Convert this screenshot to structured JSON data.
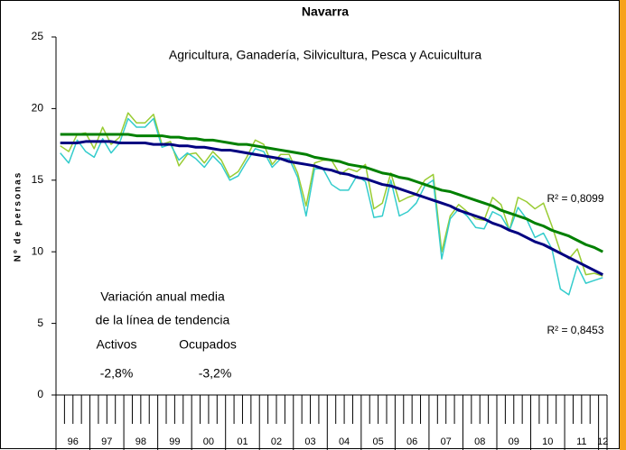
{
  "chart_data": {
    "type": "line",
    "title": "Navarra",
    "subtitle": "Agricultura, Ganadería, Silvicultura, Pesca y Acuicultura",
    "y_label": "Nº de personas",
    "categories": [
      "96",
      null,
      null,
      null,
      "97",
      null,
      null,
      null,
      "98",
      null,
      null,
      null,
      "99",
      null,
      null,
      null,
      "00",
      null,
      null,
      null,
      "01",
      null,
      null,
      null,
      "02",
      null,
      null,
      null,
      "03",
      null,
      null,
      null,
      "04",
      null,
      null,
      null,
      "05",
      null,
      null,
      null,
      "06",
      null,
      null,
      null,
      "07",
      null,
      null,
      null,
      "08",
      null,
      null,
      null,
      "09",
      null,
      null,
      null,
      "10",
      null,
      null,
      null,
      "11",
      null,
      null,
      null,
      "12"
    ],
    "series": [
      {
        "color": "#99cc33",
        "values": [
          17.4,
          17.0,
          18.2,
          18.3,
          17.2,
          18.7,
          17.5,
          18.0,
          19.7,
          19.0,
          19.0,
          19.6,
          17.5,
          17.7,
          16.0,
          16.8,
          16.9,
          16.2,
          17.0,
          16.4,
          15.2,
          15.6,
          16.6,
          17.8,
          17.5,
          16.1,
          16.8,
          16.8,
          15.5,
          13.2,
          16.2,
          16.4,
          16.4,
          15.4,
          15.8,
          15.6,
          16.1,
          13.0,
          13.4,
          15.5,
          13.5,
          13.8,
          14.0,
          15.0,
          15.4,
          10.0,
          12.5,
          13.3,
          12.8,
          12.3,
          12.2,
          13.8,
          13.3,
          11.5,
          13.8,
          13.5,
          13.0,
          13.4,
          11.8,
          10.0,
          9.5,
          10.2,
          8.4,
          8.5,
          8.3
        ]
      },
      {
        "color": "#33cccc",
        "values": [
          16.9,
          16.2,
          17.8,
          17.0,
          16.6,
          17.9,
          16.9,
          17.6,
          19.3,
          18.7,
          18.7,
          19.3,
          17.3,
          17.5,
          16.4,
          16.9,
          16.5,
          15.9,
          16.7,
          16.1,
          15.0,
          15.3,
          16.3,
          17.2,
          17.0,
          15.9,
          16.5,
          16.5,
          15.2,
          12.5,
          15.8,
          15.8,
          14.7,
          14.3,
          14.3,
          15.3,
          14.9,
          12.4,
          12.5,
          15.0,
          12.5,
          12.8,
          13.4,
          14.6,
          15.0,
          9.5,
          12.3,
          13.0,
          12.5,
          11.7,
          11.6,
          12.8,
          12.5,
          11.5,
          13.1,
          12.3,
          11.0,
          11.3,
          10.2,
          7.4,
          7.0,
          9.0,
          7.8,
          8.0,
          8.2
        ]
      },
      {
        "color": "#008000",
        "values": [
          18.2,
          18.2,
          18.2,
          18.2,
          18.2,
          18.2,
          18.2,
          18.2,
          18.2,
          18.1,
          18.1,
          18.1,
          18.1,
          18.0,
          18.0,
          17.9,
          17.9,
          17.8,
          17.8,
          17.7,
          17.6,
          17.5,
          17.5,
          17.4,
          17.3,
          17.2,
          17.1,
          17.0,
          16.9,
          16.8,
          16.6,
          16.5,
          16.4,
          16.3,
          16.1,
          16.0,
          15.9,
          15.7,
          15.5,
          15.4,
          15.2,
          15.1,
          14.9,
          14.7,
          14.5,
          14.3,
          14.2,
          14.0,
          13.8,
          13.6,
          13.4,
          13.2,
          12.9,
          12.7,
          12.5,
          12.3,
          12.0,
          11.8,
          11.5,
          11.3,
          11.1,
          10.8,
          10.5,
          10.3,
          10.0
        ]
      },
      {
        "color": "#000080",
        "values": [
          17.6,
          17.6,
          17.6,
          17.7,
          17.7,
          17.7,
          17.7,
          17.6,
          17.6,
          17.6,
          17.6,
          17.5,
          17.5,
          17.5,
          17.4,
          17.4,
          17.3,
          17.3,
          17.2,
          17.1,
          17.1,
          17.0,
          16.9,
          16.8,
          16.7,
          16.6,
          16.5,
          16.3,
          16.2,
          16.1,
          16.0,
          15.8,
          15.7,
          15.5,
          15.4,
          15.2,
          15.1,
          14.9,
          14.7,
          14.6,
          14.4,
          14.2,
          14.0,
          13.8,
          13.6,
          13.4,
          13.2,
          12.9,
          12.7,
          12.5,
          12.3,
          12.0,
          11.8,
          11.5,
          11.3,
          11.0,
          10.7,
          10.5,
          10.2,
          9.9,
          9.6,
          9.3,
          9.0,
          8.7,
          8.4
        ]
      }
    ],
    "ylim": [
      0,
      25
    ],
    "yticks": [
      0,
      5,
      10,
      15,
      20,
      25
    ],
    "annotations": [
      "R² = 0,8099",
      "R² = 0,8453",
      "Variación anual media",
      "de la línea de tendencia",
      "Activos",
      "Ocupados",
      "-2,8%",
      "-3,2%"
    ]
  }
}
